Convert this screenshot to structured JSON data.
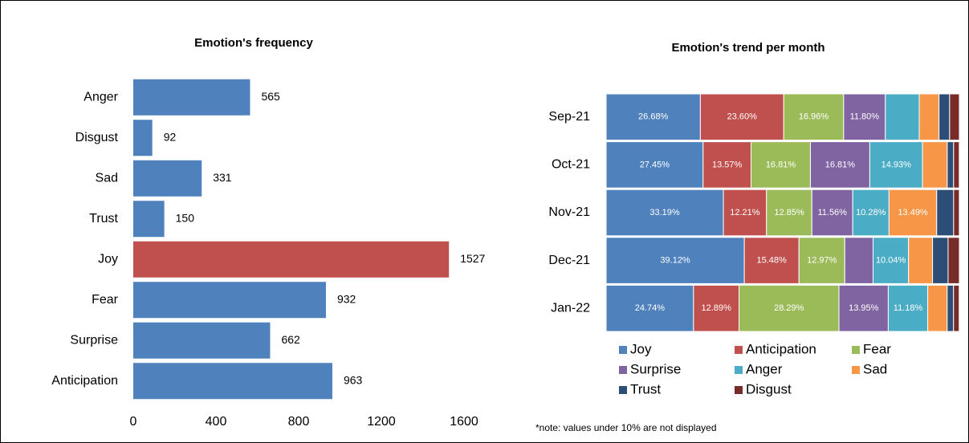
{
  "chart_data": [
    {
      "type": "hbar",
      "title": "Emotion's frequency",
      "categories": [
        "Anger",
        "Disgust",
        "Sad",
        "Trust",
        "Joy",
        "Fear",
        "Surprise",
        "Anticipation"
      ],
      "values": [
        565,
        92,
        331,
        150,
        1527,
        932,
        662,
        963
      ],
      "colors": [
        "#4f81bd",
        "#4f81bd",
        "#4f81bd",
        "#4f81bd",
        "#c0504d",
        "#4f81bd",
        "#4f81bd",
        "#4f81bd"
      ],
      "xlim": [
        0,
        1600
      ],
      "xticks": [
        0,
        400,
        800,
        1200,
        1600
      ],
      "grid": false
    },
    {
      "type": "stacked_hbar",
      "title": "Emotion's trend per month",
      "categories": [
        "Sep-21",
        "Oct-21",
        "Nov-21",
        "Dec-21",
        "Jan-22"
      ],
      "xlim": [
        0,
        100
      ],
      "series": [
        {
          "name": "Joy",
          "color": "#4f81bd",
          "values": [
            26.68,
            27.45,
            33.19,
            39.12,
            24.74
          ],
          "value_labels": [
            "26.68%",
            "27.45%",
            "33.19%",
            "39.12%",
            "24.74%"
          ]
        },
        {
          "name": "Anticipation",
          "color": "#c0504d",
          "values": [
            23.6,
            13.57,
            12.21,
            15.48,
            12.89
          ],
          "value_labels": [
            "23.60%",
            "13.57%",
            "12.21%",
            "15.48%",
            "12.89%"
          ]
        },
        {
          "name": "Fear",
          "color": "#9bbb59",
          "values": [
            16.96,
            16.81,
            12.85,
            12.97,
            28.29
          ],
          "value_labels": [
            "16.96%",
            "16.81%",
            "12.85%",
            "12.97%",
            "28.29%"
          ]
        },
        {
          "name": "Surprise",
          "color": "#8064a2",
          "values": [
            11.8,
            16.81,
            11.56,
            8.0,
            13.95
          ],
          "value_labels": [
            "11.80%",
            "16.81%",
            "11.56%",
            null,
            "13.95%"
          ]
        },
        {
          "name": "Anger",
          "color": "#4bacc6",
          "values": [
            9.6,
            14.93,
            10.28,
            10.04,
            11.18
          ],
          "value_labels": [
            null,
            "14.93%",
            "10.28%",
            "10.04%",
            "11.18%"
          ]
        },
        {
          "name": "Sad",
          "color": "#f79646",
          "values": [
            5.6,
            7.0,
            13.49,
            6.8,
            5.5
          ],
          "value_labels": [
            null,
            null,
            "13.49%",
            null,
            null
          ]
        },
        {
          "name": "Trust",
          "color": "#2c4d75",
          "values": [
            3.0,
            1.8,
            4.8,
            4.4,
            1.8
          ],
          "value_labels": [
            null,
            null,
            null,
            null,
            null
          ]
        },
        {
          "name": "Disgust",
          "color": "#772c2a",
          "values": [
            2.76,
            1.6,
            1.6,
            3.19,
            1.6
          ],
          "value_labels": [
            null,
            null,
            null,
            null,
            null
          ]
        }
      ],
      "note": "*note: values under 10% are not displayed"
    }
  ]
}
